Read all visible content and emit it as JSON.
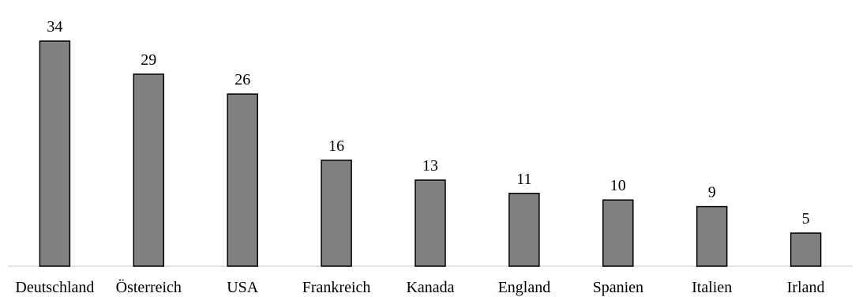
{
  "chart_data": {
    "type": "bar",
    "categories": [
      "Deutschland",
      "Österreich",
      "USA",
      "Frankreich",
      "Kanada",
      "England",
      "Spanien",
      "Italien",
      "Irland"
    ],
    "values": [
      34,
      29,
      26,
      16,
      13,
      11,
      10,
      9,
      5
    ],
    "title": "",
    "xlabel": "",
    "ylabel": "",
    "ylim": [
      0,
      34
    ],
    "grid": false,
    "legend": "none",
    "data_labels": true,
    "colors": {
      "bar_fill": "#808080",
      "bar_stroke": "#000000",
      "baseline": "#d9d9d9"
    }
  }
}
